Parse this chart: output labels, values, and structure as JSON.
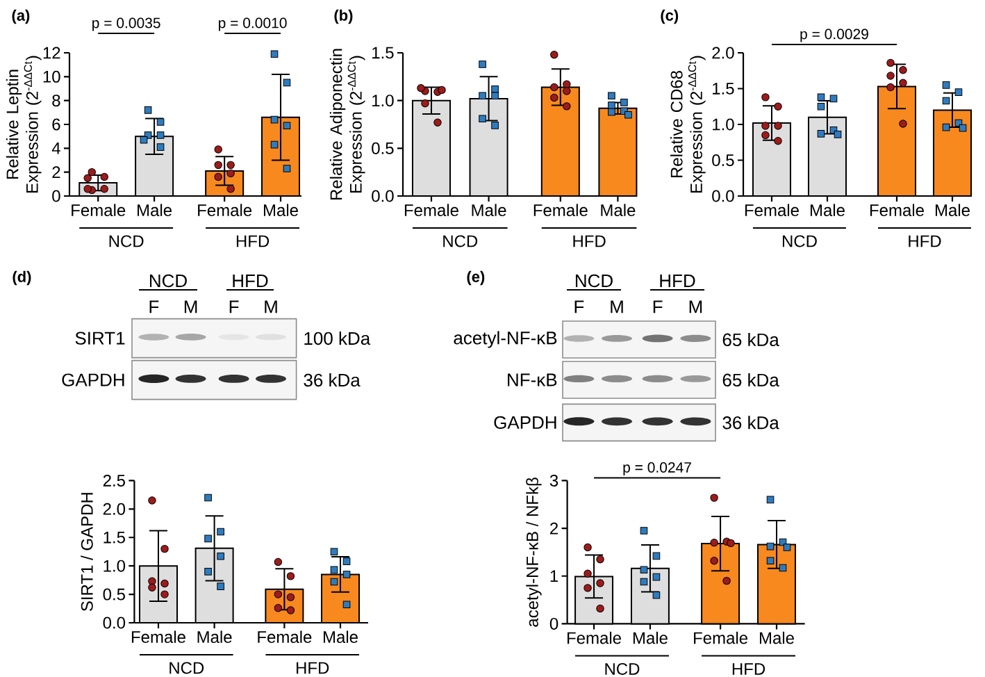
{
  "chart_data": [
    {
      "type": "bar",
      "title": "(a)",
      "ylabel": "Relative Leptin Expression (2$^{-ΔΔCt}$)",
      "categories": [
        "Female",
        "Male",
        "Female",
        "Male"
      ],
      "series": [
        {
          "type": "bar",
          "values": [
            1.1,
            5.0,
            2.1,
            6.6
          ],
          "errors": [
            0.65,
            1.5,
            1.2,
            3.6
          ],
          "colors": [
            "#dedede",
            "#dedede",
            "#f7891f",
            "#f7891f"
          ]
        },
        {
          "type": "scatter",
          "values": [
            2.0,
            null,
            3.9,
            null
          ],
          "color": "#9e1b1b",
          "marker": "circle"
        },
        {
          "type": "scatter",
          "values": [
            1.6,
            null,
            2.6,
            null
          ],
          "color": "#9e1b1b",
          "marker": "circle"
        },
        {
          "type": "scatter",
          "values": [
            1.5,
            null,
            2.6,
            null
          ],
          "color": "#9e1b1b",
          "marker": "circle"
        },
        {
          "type": "scatter",
          "values": [
            0.6,
            null,
            1.9,
            null
          ],
          "color": "#9e1b1b",
          "marker": "circle"
        },
        {
          "type": "scatter",
          "values": [
            0.5,
            null,
            1.6,
            null
          ],
          "color": "#9e1b1b",
          "marker": "circle"
        },
        {
          "type": "scatter",
          "values": [
            0.6,
            null,
            0.6,
            null
          ],
          "color": "#9e1b1b",
          "marker": "circle"
        },
        {
          "type": "scatter",
          "values": [
            null,
            7.2,
            null,
            11.9
          ],
          "color": "#2e7cc0",
          "marker": "square"
        },
        {
          "type": "scatter",
          "values": [
            null,
            6.2,
            null,
            9.5
          ],
          "color": "#2e7cc0",
          "marker": "square"
        },
        {
          "type": "scatter",
          "values": [
            null,
            5.1,
            null,
            6.4
          ],
          "color": "#2e7cc0",
          "marker": "square"
        },
        {
          "type": "scatter",
          "values": [
            null,
            5.1,
            null,
            5.9
          ],
          "color": "#2e7cc0",
          "marker": "square"
        },
        {
          "type": "scatter",
          "values": [
            null,
            4.7,
            null,
            4.3
          ],
          "color": "#2e7cc0",
          "marker": "square"
        },
        {
          "type": "scatter",
          "values": [
            null,
            4.1,
            null,
            2.3
          ],
          "color": "#2e7cc0",
          "marker": "square"
        }
      ],
      "ylim": [
        0,
        12
      ],
      "yticks": [
        0,
        2,
        4,
        6,
        8,
        10,
        12
      ],
      "annotations": [
        "NCD",
        "HFD",
        "p = 0.0035",
        "p = 0.0010"
      ]
    },
    {
      "type": "bar",
      "title": "(b)",
      "ylabel": "Relative Adiponectin Expression (2$^{-ΔΔCt}$)",
      "categories": [
        "Female",
        "Male",
        "Female",
        "Male"
      ],
      "series": [
        {
          "type": "bar",
          "values": [
            1.0,
            1.02,
            1.14,
            0.92
          ],
          "errors": [
            0.14,
            0.23,
            0.19,
            0.06
          ],
          "colors": [
            "#dedede",
            "#dedede",
            "#f7891f",
            "#f7891f"
          ]
        },
        {
          "type": "scatter",
          "values": [
            1.1,
            null,
            1.48,
            null
          ],
          "color": "#9e1b1b",
          "marker": "circle"
        },
        {
          "type": "scatter",
          "values": [
            1.09,
            null,
            1.17,
            null
          ],
          "color": "#9e1b1b",
          "marker": "circle"
        },
        {
          "type": "scatter",
          "values": [
            1.11,
            null,
            1.14,
            null
          ],
          "color": "#9e1b1b",
          "marker": "circle"
        },
        {
          "type": "scatter",
          "values": [
            1.13,
            null,
            1.1,
            null
          ],
          "color": "#9e1b1b",
          "marker": "circle"
        },
        {
          "type": "scatter",
          "values": [
            0.97,
            null,
            1.03,
            null
          ],
          "color": "#9e1b1b",
          "marker": "circle"
        },
        {
          "type": "scatter",
          "values": [
            0.77,
            null,
            0.94,
            null
          ],
          "color": "#9e1b1b",
          "marker": "circle"
        },
        {
          "type": "scatter",
          "values": [
            null,
            1.38,
            null,
            1.05
          ],
          "color": "#2e7cc0",
          "marker": "square"
        },
        {
          "type": "scatter",
          "values": [
            null,
            1.12,
            null,
            0.98
          ],
          "color": "#2e7cc0",
          "marker": "square"
        },
        {
          "type": "scatter",
          "values": [
            null,
            1.05,
            null,
            0.95
          ],
          "color": "#2e7cc0",
          "marker": "square"
        },
        {
          "type": "scatter",
          "values": [
            null,
            1.05,
            null,
            0.89
          ],
          "color": "#2e7cc0",
          "marker": "square"
        },
        {
          "type": "scatter",
          "values": [
            null,
            0.81,
            null,
            0.88
          ],
          "color": "#2e7cc0",
          "marker": "square"
        },
        {
          "type": "scatter",
          "values": [
            null,
            0.74,
            null,
            0.85
          ],
          "color": "#2e7cc0",
          "marker": "square"
        }
      ],
      "ylim": [
        0,
        1.5
      ],
      "yticks": [
        {
          "value": 0,
          "label": "0.0"
        },
        0.5,
        {
          "value": 1,
          "label": "1.0"
        },
        1.5
      ],
      "annotations": [
        "NCD",
        "HFD"
      ]
    },
    {
      "type": "bar",
      "title": "(c)",
      "ylabel": "Relative CD68 Expression (2$^{-ΔΔCt}$)",
      "categories": [
        "Female",
        "Male",
        "Female",
        "Male"
      ],
      "series": [
        {
          "type": "bar",
          "values": [
            1.02,
            1.1,
            1.53,
            1.2
          ],
          "errors": [
            0.24,
            0.23,
            0.31,
            0.24
          ],
          "colors": [
            "#dedede",
            "#dedede",
            "#f7891f",
            "#f7891f"
          ]
        },
        {
          "type": "scatter",
          "values": [
            1.38,
            null,
            1.86,
            null
          ],
          "color": "#9e1b1b",
          "marker": "circle"
        },
        {
          "type": "scatter",
          "values": [
            1.25,
            null,
            1.76,
            null
          ],
          "color": "#9e1b1b",
          "marker": "circle"
        },
        {
          "type": "scatter",
          "values": [
            0.98,
            null,
            1.68,
            null
          ],
          "color": "#9e1b1b",
          "marker": "circle"
        },
        {
          "type": "scatter",
          "values": [
            0.98,
            null,
            1.58,
            null
          ],
          "color": "#9e1b1b",
          "marker": "circle"
        },
        {
          "type": "scatter",
          "values": [
            0.85,
            null,
            1.52,
            null
          ],
          "color": "#9e1b1b",
          "marker": "circle"
        },
        {
          "type": "scatter",
          "values": [
            0.77,
            null,
            1.01,
            null
          ],
          "color": "#9e1b1b",
          "marker": "circle"
        },
        {
          "type": "scatter",
          "values": [
            null,
            1.38,
            null,
            1.55
          ],
          "color": "#2e7cc0",
          "marker": "square"
        },
        {
          "type": "scatter",
          "values": [
            null,
            1.36,
            null,
            1.45
          ],
          "color": "#2e7cc0",
          "marker": "square"
        },
        {
          "type": "scatter",
          "values": [
            null,
            1.25,
            null,
            1.33
          ],
          "color": "#2e7cc0",
          "marker": "square"
        },
        {
          "type": "scatter",
          "values": [
            null,
            0.92,
            null,
            1.02
          ],
          "color": "#2e7cc0",
          "marker": "square"
        },
        {
          "type": "scatter",
          "values": [
            null,
            0.87,
            null,
            0.96
          ],
          "color": "#2e7cc0",
          "marker": "square"
        },
        {
          "type": "scatter",
          "values": [
            null,
            0.86,
            null,
            0.95
          ],
          "color": "#2e7cc0",
          "marker": "square"
        }
      ],
      "ylim": [
        0,
        2
      ],
      "yticks": [
        {
          "value": 0,
          "label": "0.0"
        },
        0.5,
        {
          "value": 1,
          "label": "1.0"
        },
        1.5,
        {
          "value": 2,
          "label": "2.0"
        }
      ],
      "annotations": [
        "NCD",
        "HFD",
        "p = 0.0029"
      ]
    },
    {
      "type": "other",
      "title": "(d)",
      "annotations": [
        "NCD",
        "HFD",
        "F",
        "M",
        "F",
        "M",
        "SIRT1",
        "GAPDH",
        "100 kDa",
        "36 kDa"
      ]
    },
    {
      "type": "bar",
      "ylabel": "SIRT1 / GAPDH",
      "categories": [
        "Female",
        "Male",
        "Female",
        "Male"
      ],
      "series": [
        {
          "type": "bar",
          "values": [
            1.0,
            1.31,
            0.59,
            0.85
          ],
          "errors": [
            0.62,
            0.57,
            0.36,
            0.31
          ],
          "colors": [
            "#dedede",
            "#dedede",
            "#f7891f",
            "#f7891f"
          ]
        },
        {
          "type": "scatter",
          "values": [
            2.15,
            null,
            1.07,
            null
          ],
          "color": "#9e1b1b",
          "marker": "circle"
        },
        {
          "type": "scatter",
          "values": [
            1.3,
            null,
            0.82,
            null
          ],
          "color": "#9e1b1b",
          "marker": "circle"
        },
        {
          "type": "scatter",
          "values": [
            0.73,
            null,
            0.5,
            null
          ],
          "color": "#9e1b1b",
          "marker": "circle"
        },
        {
          "type": "scatter",
          "values": [
            0.69,
            null,
            0.45,
            null
          ],
          "color": "#9e1b1b",
          "marker": "circle"
        },
        {
          "type": "scatter",
          "values": [
            0.62,
            null,
            0.26,
            null
          ],
          "color": "#9e1b1b",
          "marker": "circle"
        },
        {
          "type": "scatter",
          "values": [
            0.5,
            null,
            0.22,
            null
          ],
          "color": "#9e1b1b",
          "marker": "circle"
        },
        {
          "type": "scatter",
          "values": [
            null,
            2.2,
            null,
            1.25
          ],
          "color": "#2e7cc0",
          "marker": "square"
        },
        {
          "type": "scatter",
          "values": [
            null,
            1.6,
            null,
            1.08
          ],
          "color": "#2e7cc0",
          "marker": "square"
        },
        {
          "type": "scatter",
          "values": [
            null,
            1.48,
            null,
            0.93
          ],
          "color": "#2e7cc0",
          "marker": "square"
        },
        {
          "type": "scatter",
          "values": [
            null,
            1.17,
            null,
            0.85
          ],
          "color": "#2e7cc0",
          "marker": "square"
        },
        {
          "type": "scatter",
          "values": [
            null,
            0.9,
            null,
            0.72
          ],
          "color": "#2e7cc0",
          "marker": "square"
        },
        {
          "type": "scatter",
          "values": [
            null,
            0.64,
            null,
            0.32
          ],
          "color": "#2e7cc0",
          "marker": "square"
        }
      ],
      "ylim": [
        0,
        2.5
      ],
      "yticks": [
        {
          "value": 0,
          "label": "0.0"
        },
        0.5,
        {
          "value": 1,
          "label": "1.0"
        },
        1.5,
        {
          "value": 2,
          "label": "2.0"
        },
        2.5
      ],
      "annotations": [
        "NCD",
        "HFD"
      ]
    },
    {
      "type": "other",
      "title": "(e)",
      "annotations": [
        "NCD",
        "HFD",
        "F",
        "M",
        "F",
        "M",
        "acetyl-NF-κB",
        "NF-κB",
        "GAPDH",
        "65 kDa",
        "65 kDa",
        "36 kDa"
      ]
    },
    {
      "type": "bar",
      "ylabel": "acetyl-NF-κB / NFkβ",
      "categories": [
        "Female",
        "Male",
        "Female",
        "Male"
      ],
      "series": [
        {
          "type": "bar",
          "values": [
            0.99,
            1.16,
            1.68,
            1.66
          ],
          "errors": [
            0.45,
            0.49,
            0.57,
            0.5
          ],
          "colors": [
            "#dedede",
            "#dedede",
            "#f7891f",
            "#f7891f"
          ]
        },
        {
          "type": "scatter",
          "values": [
            1.6,
            null,
            2.64,
            null
          ],
          "color": "#9e1b1b",
          "marker": "circle"
        },
        {
          "type": "scatter",
          "values": [
            1.35,
            null,
            1.72,
            null
          ],
          "color": "#9e1b1b",
          "marker": "circle"
        },
        {
          "type": "scatter",
          "values": [
            1.05,
            null,
            1.7,
            null
          ],
          "color": "#9e1b1b",
          "marker": "circle"
        },
        {
          "type": "scatter",
          "values": [
            0.85,
            null,
            1.69,
            null
          ],
          "color": "#9e1b1b",
          "marker": "circle"
        },
        {
          "type": "scatter",
          "values": [
            0.75,
            null,
            1.32,
            null
          ],
          "color": "#9e1b1b",
          "marker": "circle"
        },
        {
          "type": "scatter",
          "values": [
            0.32,
            null,
            0.9,
            null
          ],
          "color": "#9e1b1b",
          "marker": "circle"
        },
        {
          "type": "scatter",
          "values": [
            null,
            1.95,
            null,
            2.6
          ],
          "color": "#2e7cc0",
          "marker": "square"
        },
        {
          "type": "scatter",
          "values": [
            null,
            1.42,
            null,
            1.71
          ],
          "color": "#2e7cc0",
          "marker": "square"
        },
        {
          "type": "scatter",
          "values": [
            null,
            1.13,
            null,
            1.62
          ],
          "color": "#2e7cc0",
          "marker": "square"
        },
        {
          "type": "scatter",
          "values": [
            null,
            0.98,
            null,
            1.6
          ],
          "color": "#2e7cc0",
          "marker": "square"
        },
        {
          "type": "scatter",
          "values": [
            null,
            0.88,
            null,
            1.32
          ],
          "color": "#2e7cc0",
          "marker": "square"
        },
        {
          "type": "scatter",
          "values": [
            null,
            0.6,
            null,
            1.17
          ],
          "color": "#2e7cc0",
          "marker": "square"
        }
      ],
      "ylim": [
        0,
        3
      ],
      "yticks": [
        0,
        1,
        2,
        3
      ],
      "annotations": [
        "NCD",
        "HFD",
        "p = 0.0247"
      ]
    }
  ]
}
